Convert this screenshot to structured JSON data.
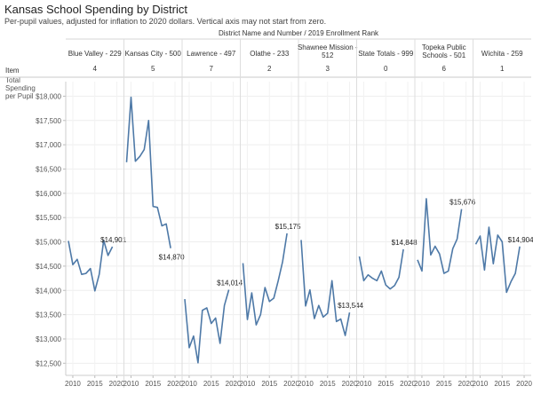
{
  "title": "Kansas School Spending by District",
  "subtitle": "Per-pupil values, adjusted for inflation to 2020 dollars. Vertical axis may not start from zero.",
  "chart_data": {
    "type": "line",
    "header_label": "District Name and Number  /  2019 Enrollment Rank",
    "row_header": "Item",
    "measure_label": [
      "Total",
      "Spending",
      "per Pupil"
    ],
    "line_color": "#4e79a7",
    "ylim": [
      12250,
      18300
    ],
    "y_ticks": [
      12500,
      13000,
      13500,
      14000,
      14500,
      15000,
      15500,
      16000,
      16500,
      17000,
      17500,
      18000
    ],
    "y_tick_labels": [
      "$12,500",
      "$13,000",
      "$13,500",
      "$14,000",
      "$14,500",
      "$15,000",
      "$15,500",
      "$16,000",
      "$16,500",
      "$17,000",
      "$17,500",
      "$18,000"
    ],
    "xlim": [
      2008.8,
      2021.2
    ],
    "x_ticks": [
      2010,
      2015,
      2020
    ],
    "grid": true,
    "panels": [
      {
        "name_lines": [
          "Blue Valley - 229"
        ],
        "rank": "4",
        "points": [
          [
            2009,
            15020
          ],
          [
            2010,
            14530
          ],
          [
            2011,
            14640
          ],
          [
            2012,
            14330
          ],
          [
            2013,
            14350
          ],
          [
            2014,
            14450
          ],
          [
            2015,
            13990
          ],
          [
            2016,
            14330
          ],
          [
            2017,
            15030
          ],
          [
            2018,
            14720
          ],
          [
            2019,
            14901
          ]
        ],
        "end_label": "$14,901",
        "end_label_pos": "above"
      },
      {
        "name_lines": [
          "Kansas City - 500"
        ],
        "rank": "5",
        "points": [
          [
            2009,
            16640
          ],
          [
            2010,
            17980
          ],
          [
            2011,
            16660
          ],
          [
            2012,
            16760
          ],
          [
            2013,
            16900
          ],
          [
            2014,
            17500
          ],
          [
            2015,
            15730
          ],
          [
            2016,
            15710
          ],
          [
            2017,
            15330
          ],
          [
            2018,
            15370
          ],
          [
            2019,
            14870
          ]
        ],
        "end_label": "$14,870",
        "end_label_pos": "below"
      },
      {
        "name_lines": [
          "Lawrence - 497"
        ],
        "rank": "7",
        "points": [
          [
            2009,
            13820
          ],
          [
            2010,
            12820
          ],
          [
            2011,
            13060
          ],
          [
            2012,
            12510
          ],
          [
            2013,
            13590
          ],
          [
            2014,
            13640
          ],
          [
            2015,
            13320
          ],
          [
            2016,
            13430
          ],
          [
            2017,
            12910
          ],
          [
            2018,
            13690
          ],
          [
            2019,
            14014
          ]
        ],
        "end_label": "$14,014",
        "end_label_pos": "above"
      },
      {
        "name_lines": [
          "Olathe - 233"
        ],
        "rank": "2",
        "points": [
          [
            2009,
            14560
          ],
          [
            2010,
            13400
          ],
          [
            2011,
            13950
          ],
          [
            2012,
            13290
          ],
          [
            2013,
            13500
          ],
          [
            2014,
            14060
          ],
          [
            2015,
            13770
          ],
          [
            2016,
            13840
          ],
          [
            2017,
            14200
          ],
          [
            2018,
            14590
          ],
          [
            2019,
            15175
          ]
        ],
        "end_label": "$15,175",
        "end_label_pos": "above"
      },
      {
        "name_lines": [
          "Shawnee Mission -",
          "512"
        ],
        "rank": "3",
        "points": [
          [
            2009,
            15040
          ],
          [
            2010,
            13680
          ],
          [
            2011,
            14010
          ],
          [
            2012,
            13420
          ],
          [
            2013,
            13690
          ],
          [
            2014,
            13450
          ],
          [
            2015,
            13530
          ],
          [
            2016,
            14200
          ],
          [
            2017,
            13360
          ],
          [
            2018,
            13410
          ],
          [
            2019,
            13070
          ],
          [
            2020,
            13544
          ]
        ],
        "end_label": "$13,544",
        "end_label_pos": "above"
      },
      {
        "name_lines": [
          "State Totals - 999"
        ],
        "rank": "0",
        "points": [
          [
            2009,
            14700
          ],
          [
            2010,
            14200
          ],
          [
            2011,
            14320
          ],
          [
            2012,
            14250
          ],
          [
            2013,
            14200
          ],
          [
            2014,
            14400
          ],
          [
            2015,
            14110
          ],
          [
            2016,
            14030
          ],
          [
            2017,
            14100
          ],
          [
            2018,
            14270
          ],
          [
            2019,
            14848
          ]
        ],
        "end_label": "$14,848",
        "end_label_pos": "above"
      },
      {
        "name_lines": [
          "Topeka Public",
          "Schools - 501"
        ],
        "rank": "6",
        "points": [
          [
            2009,
            14630
          ],
          [
            2010,
            14400
          ],
          [
            2011,
            15890
          ],
          [
            2012,
            14730
          ],
          [
            2013,
            14910
          ],
          [
            2014,
            14750
          ],
          [
            2015,
            14350
          ],
          [
            2016,
            14400
          ],
          [
            2017,
            14860
          ],
          [
            2018,
            15060
          ],
          [
            2019,
            15676
          ]
        ],
        "end_label": "$15,676",
        "end_label_pos": "above"
      },
      {
        "name_lines": [
          "Wichita - 259"
        ],
        "rank": "1",
        "points": [
          [
            2009,
            14950
          ],
          [
            2010,
            15120
          ],
          [
            2011,
            14420
          ],
          [
            2012,
            15300
          ],
          [
            2013,
            14550
          ],
          [
            2014,
            15140
          ],
          [
            2015,
            15000
          ],
          [
            2016,
            13960
          ],
          [
            2017,
            14180
          ],
          [
            2018,
            14350
          ],
          [
            2019,
            14904
          ]
        ],
        "end_label": "$14,904",
        "end_label_pos": "above"
      }
    ]
  }
}
